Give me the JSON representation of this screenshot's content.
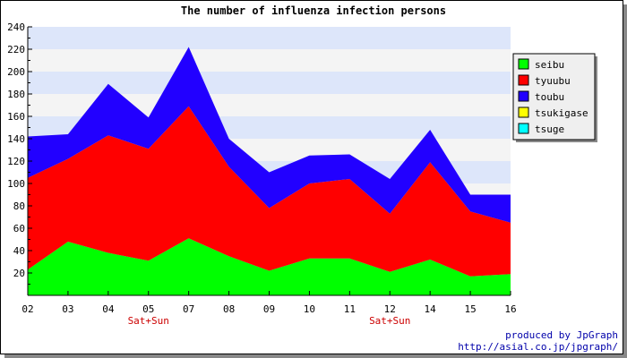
{
  "chart_data": {
    "type": "area",
    "stacked": true,
    "title": "The number of influenza infection persons",
    "categories": [
      "02",
      "03",
      "04",
      "05",
      "07",
      "08",
      "09",
      "10",
      "11",
      "12",
      "14",
      "15",
      "16"
    ],
    "category_notes": [
      {
        "category": "05",
        "text": "Sat+Sun"
      },
      {
        "category": "12",
        "text": "Sat+Sun"
      }
    ],
    "ylim": [
      0,
      240
    ],
    "yticks": [
      20,
      40,
      60,
      80,
      100,
      120,
      140,
      160,
      180,
      200,
      220,
      240
    ],
    "y_tick_step": 20,
    "grid": true,
    "legend_position": "top-right",
    "series": [
      {
        "name": "seibu",
        "color": "#00ff00",
        "values": [
          23,
          48,
          38,
          31,
          51,
          35,
          22,
          33,
          33,
          21,
          32,
          17,
          19
        ]
      },
      {
        "name": "tyuubu",
        "color": "#ff0000",
        "values": [
          82,
          74,
          105,
          100,
          118,
          80,
          56,
          67,
          71,
          52,
          87,
          58,
          46
        ]
      },
      {
        "name": "toubu",
        "color": "#2200ff",
        "values": [
          37,
          22,
          46,
          28,
          53,
          25,
          32,
          25,
          22,
          31,
          29,
          15,
          25
        ]
      },
      {
        "name": "tsukigase",
        "color": "#ffff00",
        "values": [
          0,
          0,
          0,
          0,
          0,
          0,
          0,
          0,
          0,
          0,
          0,
          0,
          0
        ]
      },
      {
        "name": "tsuge",
        "color": "#00ffff",
        "values": [
          0,
          0,
          0,
          0,
          0,
          0,
          0,
          0,
          0,
          0,
          0,
          0,
          0
        ]
      }
    ]
  },
  "credits": [
    "produced by JpGraph",
    "http://asial.co.jp/jpgraph/"
  ]
}
